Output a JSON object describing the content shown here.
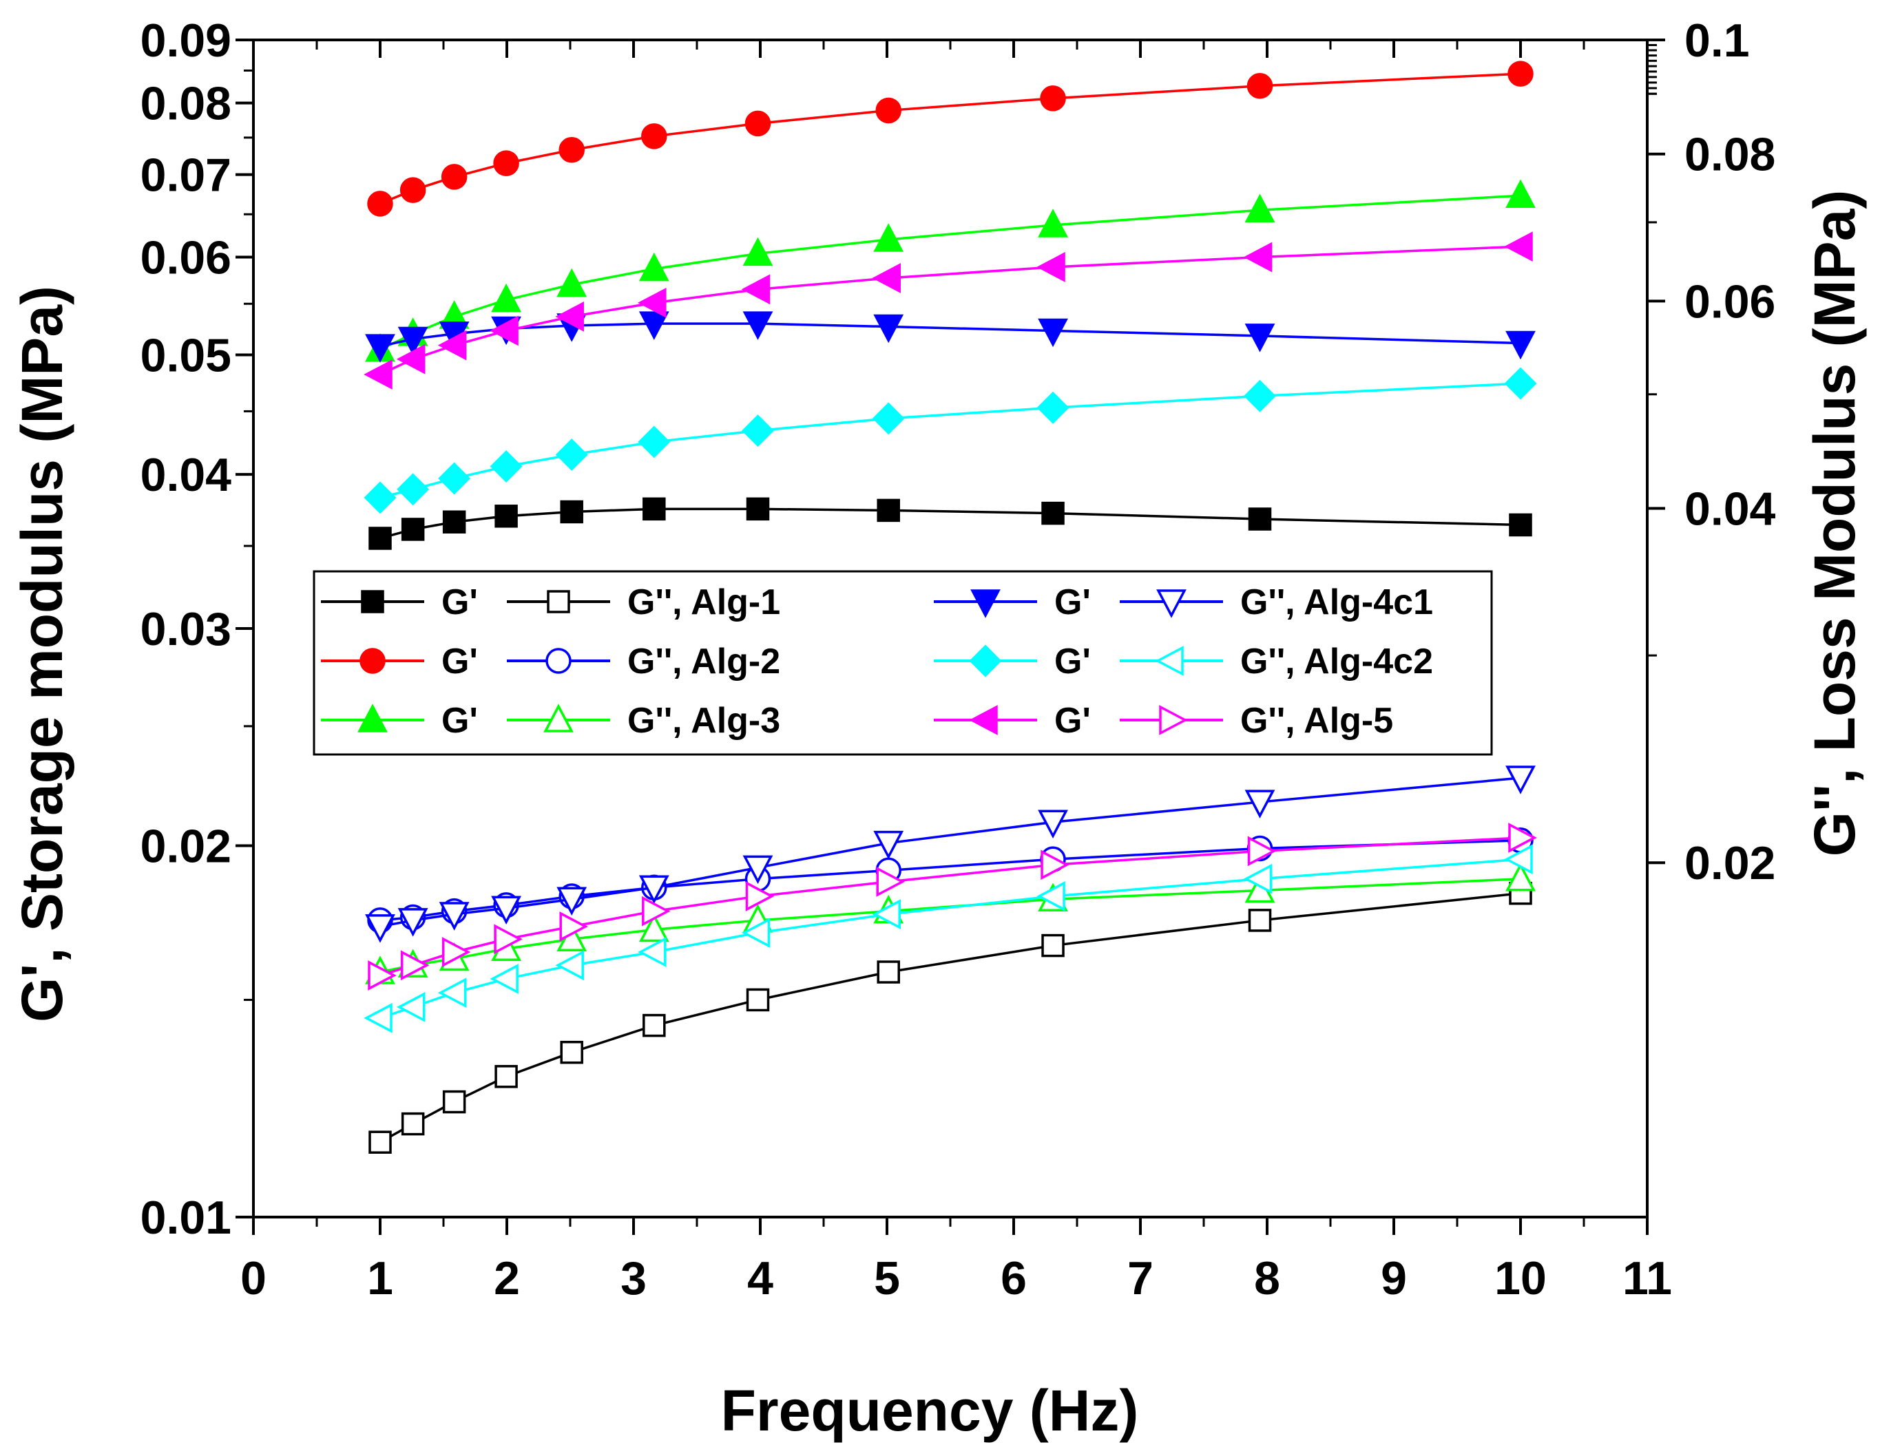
{
  "chart_data": {
    "type": "line",
    "xlabel": "Frequency (Hz)",
    "ylabel_left": "G', Storage modulus (MPa)",
    "ylabel_right": "G'', Loss Modulus (MPa)",
    "x_axis": {
      "lim": [
        0,
        11
      ],
      "ticks": [
        0,
        1,
        2,
        3,
        4,
        5,
        6,
        7,
        8,
        9,
        10,
        11
      ],
      "tick_labels": [
        "0",
        "1",
        "2",
        "3",
        "4",
        "5",
        "6",
        "7",
        "8",
        "9",
        "10",
        "11"
      ]
    },
    "y_left": {
      "scale": "log",
      "lim": [
        0.01,
        0.09
      ],
      "ticks": [
        0.01,
        0.02,
        0.03,
        0.04,
        0.05,
        0.06,
        0.07,
        0.08,
        0.09
      ],
      "tick_labels": [
        "0.01",
        "0.02",
        "0.03",
        "0.04",
        "0.05",
        "0.06",
        "0.07",
        "0.08",
        "0.09"
      ]
    },
    "y_right": {
      "scale": "log",
      "lim": [
        0.01,
        0.1
      ],
      "ticks": [
        0.02,
        0.04,
        0.06,
        0.08,
        0.1
      ],
      "tick_labels": [
        "0.02",
        "0.04",
        "0.06",
        "0.08",
        "0.1"
      ]
    },
    "x": [
      1.0,
      1.259,
      1.585,
      1.995,
      2.512,
      3.162,
      3.981,
      5.012,
      6.31,
      7.943,
      10.0
    ],
    "series": [
      {
        "name": "G', Alg-1",
        "axis": "left",
        "color": "#000000",
        "marker": "square",
        "filled": true,
        "values": [
          0.0355,
          0.0361,
          0.0366,
          0.037,
          0.0373,
          0.0375,
          0.0375,
          0.0374,
          0.0372,
          0.0368,
          0.0364
        ]
      },
      {
        "name": "G'', Alg-1",
        "axis": "left",
        "color": "#000000",
        "marker": "square",
        "filled": false,
        "values": [
          0.0115,
          0.0119,
          0.0124,
          0.013,
          0.0136,
          0.0143,
          0.015,
          0.0158,
          0.0166,
          0.0174,
          0.0183
        ]
      },
      {
        "name": "G', Alg-2",
        "axis": "left",
        "color": "#ff0000",
        "marker": "circle",
        "filled": true,
        "values": [
          0.0663,
          0.068,
          0.0697,
          0.0715,
          0.0733,
          0.0752,
          0.077,
          0.0789,
          0.0807,
          0.0826,
          0.0845
        ]
      },
      {
        "name": "G'', Alg-2",
        "axis": "left",
        "color": "#0000ff",
        "marker": "circle",
        "filled": false,
        "values": [
          0.0174,
          0.0175,
          0.0177,
          0.0179,
          0.0182,
          0.0185,
          0.0188,
          0.0191,
          0.0195,
          0.0199,
          0.0202
        ]
      },
      {
        "name": "G', Alg-3",
        "axis": "left",
        "color": "#00ff00",
        "marker": "triangle-up",
        "filled": true,
        "values": [
          0.0505,
          0.052,
          0.0537,
          0.0554,
          0.057,
          0.0587,
          0.0604,
          0.062,
          0.0637,
          0.0655,
          0.0673
        ]
      },
      {
        "name": "G'', Alg-3",
        "axis": "left",
        "color": "#00ff00",
        "marker": "triangle-up",
        "filled": false,
        "values": [
          0.0158,
          0.016,
          0.0162,
          0.0165,
          0.0168,
          0.0171,
          0.0174,
          0.0177,
          0.0181,
          0.0184,
          0.0188
        ]
      },
      {
        "name": "G', Alg-4c1",
        "axis": "left",
        "color": "#0000ff",
        "marker": "triangle-down",
        "filled": true,
        "values": [
          0.0508,
          0.0515,
          0.052,
          0.0525,
          0.0528,
          0.053,
          0.053,
          0.0527,
          0.0523,
          0.0518,
          0.0511
        ]
      },
      {
        "name": "G'', Alg-4c1",
        "axis": "left",
        "color": "#0000ff",
        "marker": "triangle-down",
        "filled": false,
        "values": [
          0.0172,
          0.0174,
          0.0176,
          0.0178,
          0.0181,
          0.0185,
          0.0192,
          0.0201,
          0.0209,
          0.0217,
          0.0227
        ]
      },
      {
        "name": "G', Alg-4c2",
        "axis": "left",
        "color": "#00ffff",
        "marker": "diamond",
        "filled": true,
        "values": [
          0.0383,
          0.0389,
          0.0397,
          0.0406,
          0.0415,
          0.0425,
          0.0434,
          0.0444,
          0.0453,
          0.0463,
          0.0474
        ]
      },
      {
        "name": "G'', Alg-4c2",
        "axis": "left",
        "color": "#00ffff",
        "marker": "triangle-left",
        "filled": false,
        "values": [
          0.0145,
          0.0148,
          0.0152,
          0.0156,
          0.016,
          0.0164,
          0.017,
          0.0176,
          0.0182,
          0.0188,
          0.0195
        ]
      },
      {
        "name": "G', Alg-5",
        "axis": "left",
        "color": "#ff00ff",
        "marker": "triangle-left",
        "filled": true,
        "values": [
          0.0482,
          0.0496,
          0.0509,
          0.0523,
          0.0537,
          0.0551,
          0.0565,
          0.0577,
          0.0589,
          0.06,
          0.0612
        ]
      },
      {
        "name": "G'', Alg-5",
        "axis": "left",
        "color": "#ff00ff",
        "marker": "triangle-right",
        "filled": false,
        "values": [
          0.0157,
          0.016,
          0.0164,
          0.0168,
          0.0172,
          0.0177,
          0.0182,
          0.0187,
          0.0193,
          0.0198,
          0.0203
        ]
      }
    ],
    "legend": {
      "position": "middle-left",
      "entries": [
        {
          "filled_series": 0,
          "open_series": 1,
          "label_g1": "G'",
          "label_g2": "G'', Alg-1"
        },
        {
          "filled_series": 6,
          "open_series": 7,
          "label_g1": "G'",
          "label_g2": "G'', Alg-4c1"
        },
        {
          "filled_series": 2,
          "open_series": 3,
          "label_g1": "G'",
          "label_g2": "G'', Alg-2"
        },
        {
          "filled_series": 8,
          "open_series": 9,
          "label_g1": "G'",
          "label_g2": "G'', Alg-4c2"
        },
        {
          "filled_series": 4,
          "open_series": 5,
          "label_g1": "G'",
          "label_g2": "G'', Alg-3"
        },
        {
          "filled_series": 10,
          "open_series": 11,
          "label_g1": "G'",
          "label_g2": "G'', Alg-5"
        }
      ]
    }
  }
}
